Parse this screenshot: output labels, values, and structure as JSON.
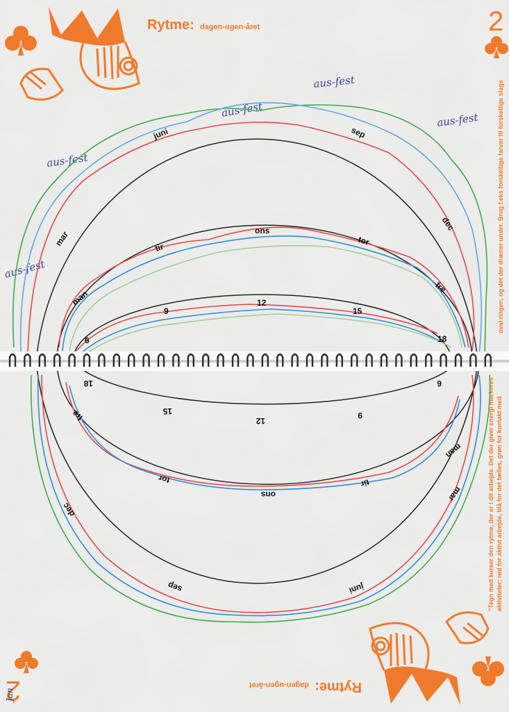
{
  "title": "Rytme:",
  "subtitle": "dagen-ugen-året",
  "card_number": "2",
  "instructions_line1": "\"Tegn med kurser den rytme, der er i dit arbejde. Det der giver energi markeres",
  "instructions_line2": "aktiviteter; rød for aktivt arbejde, blå for det fælles, grøn for kontakt med",
  "instructions_line3": "oval ringen, og det der dræner under. Brug f.eks forskellige farver til forskellige slags",
  "handwritten_note": "aus-fest",
  "handwritten_corner": "Jan",
  "year_labels": [
    "mar",
    "juni",
    "sep",
    "dec"
  ],
  "week_labels": [
    "man",
    "tir",
    "ons",
    "tor",
    "fre"
  ],
  "day_labels": [
    "6",
    "9",
    "12",
    "15",
    "18"
  ],
  "colors": {
    "accent": "#f07a2b",
    "ink_blue": "#3b3f9e",
    "curve_red": "#e2484a",
    "curve_blue": "#2f8bd9",
    "curve_green": "#3fa94a"
  }
}
